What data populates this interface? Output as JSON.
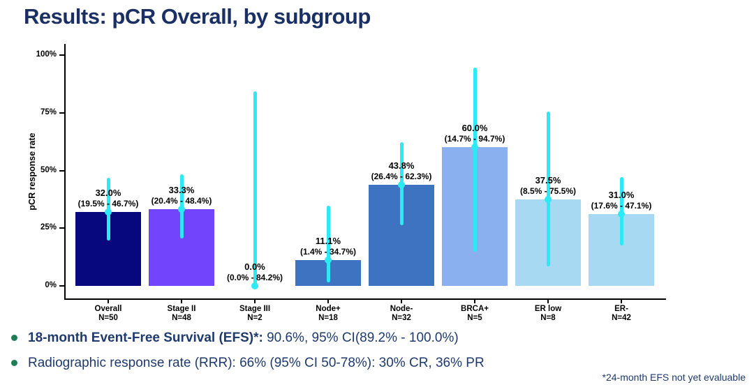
{
  "slide": {
    "title": "Results: pCR Overall, by subgroup",
    "bullets": [
      {
        "bold": "18-month Event-Free Survival (EFS)*:",
        "rest": " 90.6%, 95% CI(89.2% - 100.0%)"
      },
      {
        "bold": "",
        "rest": "Radiographic response rate (RRR): 66% (95% CI 50-78%): 30% CR, 36% PR"
      }
    ],
    "footnote": "*24-month EFS not yet evaluable"
  },
  "colors": {
    "title_navy": "#1a2f63",
    "text_navy": "#1e3a6e",
    "bullet_dot_green": "#1f7e55",
    "error_bar_cyan": "#2de9f6"
  },
  "chart_data": {
    "type": "bar",
    "title": "",
    "xlabel": "",
    "ylabel": "pCR response rate",
    "ylim": [
      0,
      100
    ],
    "grid": false,
    "legend": "none",
    "yticks": [
      "0%",
      "25%",
      "50%",
      "75%",
      "100%"
    ],
    "ytick_values": [
      0,
      25,
      50,
      75,
      100
    ],
    "categories": [
      "Overall",
      "Stage II",
      "Stage III",
      "Node+",
      "Node-",
      "BRCA+",
      "ER low",
      "ER-"
    ],
    "n_labels": [
      "N=50",
      "N=48",
      "N=2",
      "N=18",
      "N=32",
      "N=5",
      "N=8",
      "N=42"
    ],
    "values": [
      32.0,
      33.3,
      0.0,
      11.1,
      43.8,
      60.0,
      37.5,
      31.0
    ],
    "value_labels": [
      "32.0%",
      "33.3%",
      "0.0%",
      "11.1%",
      "43.8%",
      "60.0%",
      "37.5%",
      "31.0%"
    ],
    "ci_labels": [
      "(19.5% - 46.7%)",
      "(20.4% - 48.4%)",
      "(0.0% - 84.2%)",
      "(1.4% - 34.7%)",
      "(26.4% - 62.3%)",
      "(14.7% - 94.7%)",
      "(8.5% - 75.5%)",
      "(17.6% - 47.1%)"
    ],
    "ci_low": [
      19.5,
      20.4,
      0.0,
      1.4,
      26.4,
      14.7,
      8.5,
      17.6
    ],
    "ci_high": [
      46.7,
      48.4,
      84.2,
      34.7,
      62.3,
      94.7,
      75.5,
      47.1
    ],
    "bar_colors": [
      "#08087e",
      "#7244fb",
      "#ffffff",
      "#3d73c1",
      "#3d73c1",
      "#8bb0ef",
      "#a7d9f2",
      "#a7d9f2"
    ],
    "error_bar_color": "#2de9f6"
  }
}
